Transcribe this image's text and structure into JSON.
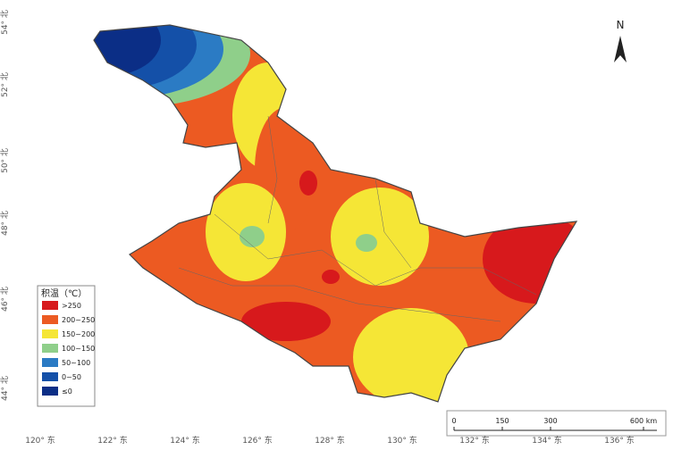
{
  "map": {
    "north_arrow": "N",
    "legend": {
      "title": "积温（℃）",
      "items": [
        {
          "label": ">250",
          "color": "#d7191c"
        },
        {
          "label": "200~250",
          "color": "#ec5a22"
        },
        {
          "label": "150~200",
          "color": "#f5e636"
        },
        {
          "label": "100~150",
          "color": "#8fcf8a"
        },
        {
          "label": "50~100",
          "color": "#2b7bc4"
        },
        {
          "label": "0~50",
          "color": "#1450a8"
        },
        {
          "label": "≤0",
          "color": "#0b2e86"
        }
      ]
    },
    "scale_bar": {
      "labels": [
        "0",
        "150",
        "300",
        "600 km"
      ]
    },
    "longitude_labels": [
      "120° 东",
      "122° 东",
      "124° 东",
      "126° 东",
      "128° 东",
      "130° 东",
      "132° 东",
      "134° 东",
      "136° 东"
    ],
    "latitude_labels": [
      "54° 北",
      "52° 北",
      "50° 北",
      "48° 北",
      "46° 北",
      "44° 北"
    ]
  }
}
